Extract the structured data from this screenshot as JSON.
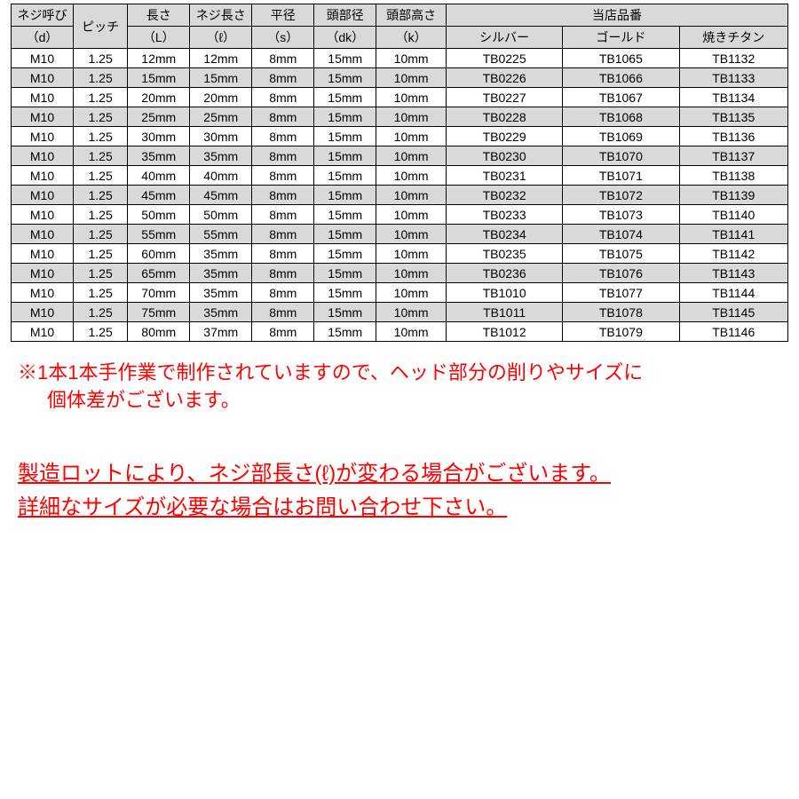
{
  "table": {
    "header_top": {
      "d": "ネジ呼び",
      "pitch": "ピッチ",
      "L": "長さ",
      "l": "ネジ長さ",
      "s": "平径",
      "dk": "頭部径",
      "k": "頭部高さ",
      "group": "当店品番"
    },
    "header_sub": {
      "d": "（d）",
      "L": "（L）",
      "l": "（ℓ）",
      "s": "（s）",
      "dk": "（dk）",
      "k": "（k）",
      "silver": "シルバー",
      "gold": "ゴールド",
      "titan": "焼きチタン"
    },
    "rows": [
      [
        "M10",
        "1.25",
        "12mm",
        "12mm",
        "8mm",
        "15mm",
        "10mm",
        "TB0225",
        "TB1065",
        "TB1132"
      ],
      [
        "M10",
        "1.25",
        "15mm",
        "15mm",
        "8mm",
        "15mm",
        "10mm",
        "TB0226",
        "TB1066",
        "TB1133"
      ],
      [
        "M10",
        "1.25",
        "20mm",
        "20mm",
        "8mm",
        "15mm",
        "10mm",
        "TB0227",
        "TB1067",
        "TB1134"
      ],
      [
        "M10",
        "1.25",
        "25mm",
        "25mm",
        "8mm",
        "15mm",
        "10mm",
        "TB0228",
        "TB1068",
        "TB1135"
      ],
      [
        "M10",
        "1.25",
        "30mm",
        "30mm",
        "8mm",
        "15mm",
        "10mm",
        "TB0229",
        "TB1069",
        "TB1136"
      ],
      [
        "M10",
        "1.25",
        "35mm",
        "35mm",
        "8mm",
        "15mm",
        "10mm",
        "TB0230",
        "TB1070",
        "TB1137"
      ],
      [
        "M10",
        "1.25",
        "40mm",
        "40mm",
        "8mm",
        "15mm",
        "10mm",
        "TB0231",
        "TB1071",
        "TB1138"
      ],
      [
        "M10",
        "1.25",
        "45mm",
        "45mm",
        "8mm",
        "15mm",
        "10mm",
        "TB0232",
        "TB1072",
        "TB1139"
      ],
      [
        "M10",
        "1.25",
        "50mm",
        "50mm",
        "8mm",
        "15mm",
        "10mm",
        "TB0233",
        "TB1073",
        "TB1140"
      ],
      [
        "M10",
        "1.25",
        "55mm",
        "55mm",
        "8mm",
        "15mm",
        "10mm",
        "TB0234",
        "TB1074",
        "TB1141"
      ],
      [
        "M10",
        "1.25",
        "60mm",
        "35mm",
        "8mm",
        "15mm",
        "10mm",
        "TB0235",
        "TB1075",
        "TB1142"
      ],
      [
        "M10",
        "1.25",
        "65mm",
        "35mm",
        "8mm",
        "15mm",
        "10mm",
        "TB0236",
        "TB1076",
        "TB1143"
      ],
      [
        "M10",
        "1.25",
        "70mm",
        "35mm",
        "8mm",
        "15mm",
        "10mm",
        "TB1010",
        "TB1077",
        "TB1144"
      ],
      [
        "M10",
        "1.25",
        "75mm",
        "35mm",
        "8mm",
        "15mm",
        "10mm",
        "TB1011",
        "TB1078",
        "TB1145"
      ],
      [
        "M10",
        "1.25",
        "80mm",
        "37mm",
        "8mm",
        "15mm",
        "10mm",
        "TB1012",
        "TB1079",
        "TB1146"
      ]
    ]
  },
  "note1": {
    "line1": "※1本1本手作業で制作されていますので、ヘッド部分の削りやサイズに",
    "line2": "個体差がございます。"
  },
  "note2": {
    "line1": "製造ロットにより、ネジ部長さ(ℓ)が変わる場合がございます。",
    "line2": "詳細なサイズが必要な場合はお問い合わせ下さい。"
  },
  "styling": {
    "colors": {
      "header_bg": "#d9d9d9",
      "alt_row_bg": "#d9d9d9",
      "row_bg": "#ffffff",
      "border": "#000000",
      "note_text": "#ff0000",
      "body_bg": "#ffffff"
    },
    "table_fontsize": 14,
    "note1_fontsize": 22,
    "note2_fontsize": 24
  }
}
